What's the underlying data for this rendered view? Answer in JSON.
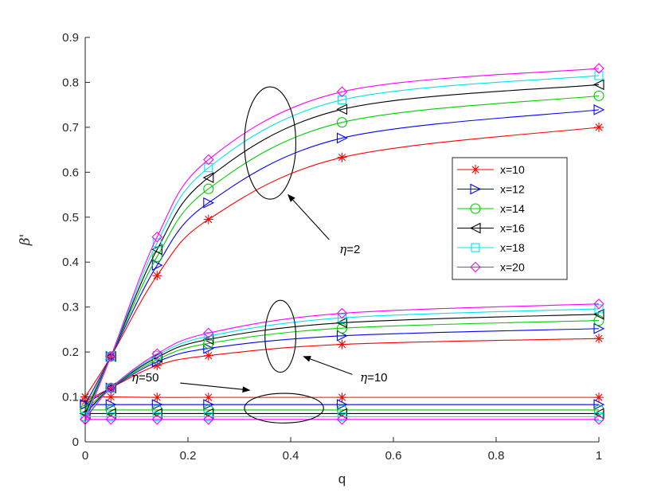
{
  "chart_data": {
    "type": "line",
    "title": "",
    "xlabel": "q",
    "ylabel": "β'",
    "xlim": [
      0,
      1
    ],
    "ylim": [
      0,
      0.9
    ],
    "grid": false,
    "legend_position": "right",
    "x_ticks": [
      "0",
      "0.2",
      "0.4",
      "0.6",
      "0.8",
      "1"
    ],
    "y_ticks": [
      "0",
      "0.1",
      "0.2",
      "0.3",
      "0.4",
      "0.5",
      "0.6",
      "0.7",
      "0.8",
      "0.9"
    ],
    "marker_x": [
      0,
      0.05,
      0.14,
      0.24,
      0.5,
      1.0
    ],
    "series": [
      {
        "name": "x=10",
        "color": "#ff0000",
        "marker": "star",
        "eta2": [
          0.1,
          0.19,
          0.37,
          0.495,
          0.633,
          0.7
        ],
        "eta10": [
          0.09,
          0.12,
          0.17,
          0.192,
          0.217,
          0.23
        ],
        "eta50": [
          0.1,
          0.1,
          0.099,
          0.099,
          0.099,
          0.099
        ]
      },
      {
        "name": "x=12",
        "color": "#0000ff",
        "marker": "triangle-right",
        "eta2": [
          0.083,
          0.19,
          0.393,
          0.532,
          0.676,
          0.739
        ],
        "eta10": [
          0.083,
          0.12,
          0.178,
          0.208,
          0.236,
          0.252
        ],
        "eta50": [
          0.083,
          0.083,
          0.083,
          0.083,
          0.083,
          0.083
        ]
      },
      {
        "name": "x=14",
        "color": "#00cc00",
        "marker": "circle",
        "eta2": [
          0.071,
          0.19,
          0.412,
          0.563,
          0.711,
          0.77
        ],
        "eta10": [
          0.071,
          0.12,
          0.183,
          0.219,
          0.253,
          0.27
        ],
        "eta50": [
          0.071,
          0.071,
          0.071,
          0.071,
          0.071,
          0.071
        ]
      },
      {
        "name": "x=16",
        "color": "#000000",
        "marker": "triangle-left",
        "eta2": [
          0.063,
          0.19,
          0.428,
          0.588,
          0.74,
          0.795
        ],
        "eta10": [
          0.063,
          0.12,
          0.188,
          0.228,
          0.265,
          0.284
        ],
        "eta50": [
          0.063,
          0.063,
          0.063,
          0.063,
          0.063,
          0.063
        ]
      },
      {
        "name": "x=18",
        "color": "#00e5ee",
        "marker": "square",
        "eta2": [
          0.056,
          0.19,
          0.443,
          0.61,
          0.761,
          0.815
        ],
        "eta10": [
          0.056,
          0.12,
          0.192,
          0.235,
          0.276,
          0.296
        ],
        "eta50": [
          0.056,
          0.056,
          0.056,
          0.056,
          0.056,
          0.056
        ]
      },
      {
        "name": "x=20",
        "color": "#ff00ff",
        "marker": "diamond",
        "eta2": [
          0.05,
          0.19,
          0.456,
          0.628,
          0.779,
          0.831
        ],
        "eta10": [
          0.05,
          0.12,
          0.196,
          0.242,
          0.286,
          0.307
        ],
        "eta50": [
          0.05,
          0.05,
          0.05,
          0.05,
          0.05,
          0.05
        ]
      }
    ],
    "annotations": [
      {
        "symbol": "η",
        "text": "=2",
        "ellipse_center": [
          0.36,
          0.665
        ],
        "ellipse_radius": [
          0.05,
          0.125
        ],
        "arrow_from": [
          0.475,
          0.45
        ],
        "arrow_to": [
          0.395,
          0.55
        ]
      },
      {
        "symbol": "η",
        "text": "=10",
        "ellipse_center": [
          0.38,
          0.235
        ],
        "ellipse_radius": [
          0.03,
          0.08
        ],
        "arrow_from": [
          0.52,
          0.15
        ],
        "arrow_to": [
          0.425,
          0.19
        ]
      },
      {
        "symbol": "η",
        "text": "=50",
        "ellipse_center": [
          0.387,
          0.075
        ],
        "ellipse_radius": [
          0.077,
          0.033
        ],
        "arrow_from": [
          0.185,
          0.131
        ],
        "arrow_to": [
          0.32,
          0.115
        ]
      }
    ]
  }
}
